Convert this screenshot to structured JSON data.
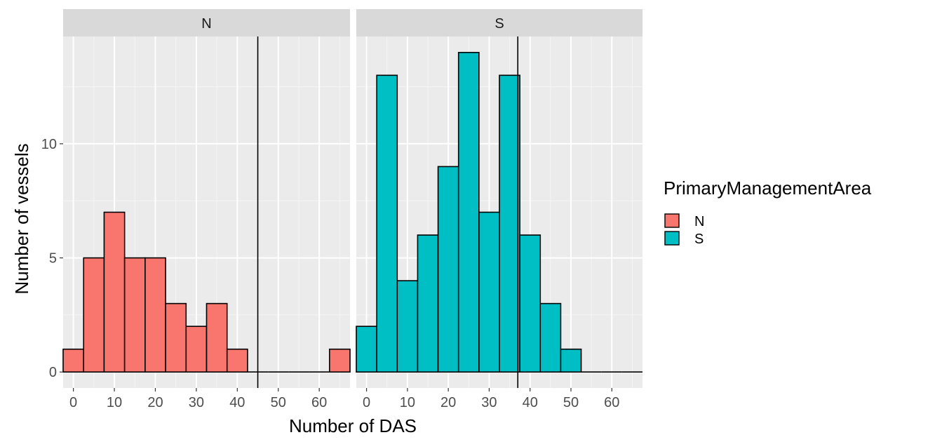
{
  "chart_data": {
    "type": "bar",
    "xlabel": "Number of DAS",
    "ylabel": "Number of vessels",
    "xlim": [
      -2.5,
      67.5
    ],
    "ylim": [
      -0.7,
      14.7
    ],
    "x_ticks": [
      "0",
      "10",
      "20",
      "30",
      "40",
      "50",
      "60"
    ],
    "y_ticks": [
      "0",
      "5",
      "10"
    ],
    "grid": true,
    "legend": {
      "title": "PrimaryManagementArea",
      "position": "right",
      "entries": [
        {
          "label": "N",
          "color": "#F8766D"
        },
        {
          "label": "S",
          "color": "#00BFC4"
        }
      ]
    },
    "panels": [
      {
        "strip": "N",
        "fill": "#F8766D",
        "bin_width": 5,
        "bin_centers": [
          0,
          5,
          10,
          15,
          20,
          25,
          30,
          35,
          40,
          45,
          50,
          55,
          60,
          65
        ],
        "counts": [
          1,
          5,
          7,
          5,
          5,
          3,
          2,
          3,
          1,
          0,
          0,
          0,
          0,
          1
        ],
        "vline": 45
      },
      {
        "strip": "S",
        "fill": "#00BFC4",
        "bin_width": 5,
        "bin_centers": [
          0,
          5,
          10,
          15,
          20,
          25,
          30,
          35,
          40,
          45,
          50,
          55,
          60,
          65
        ],
        "counts": [
          2,
          13,
          4,
          6,
          9,
          14,
          7,
          13,
          6,
          3,
          1,
          0,
          0,
          0
        ],
        "vline": 37
      }
    ]
  }
}
